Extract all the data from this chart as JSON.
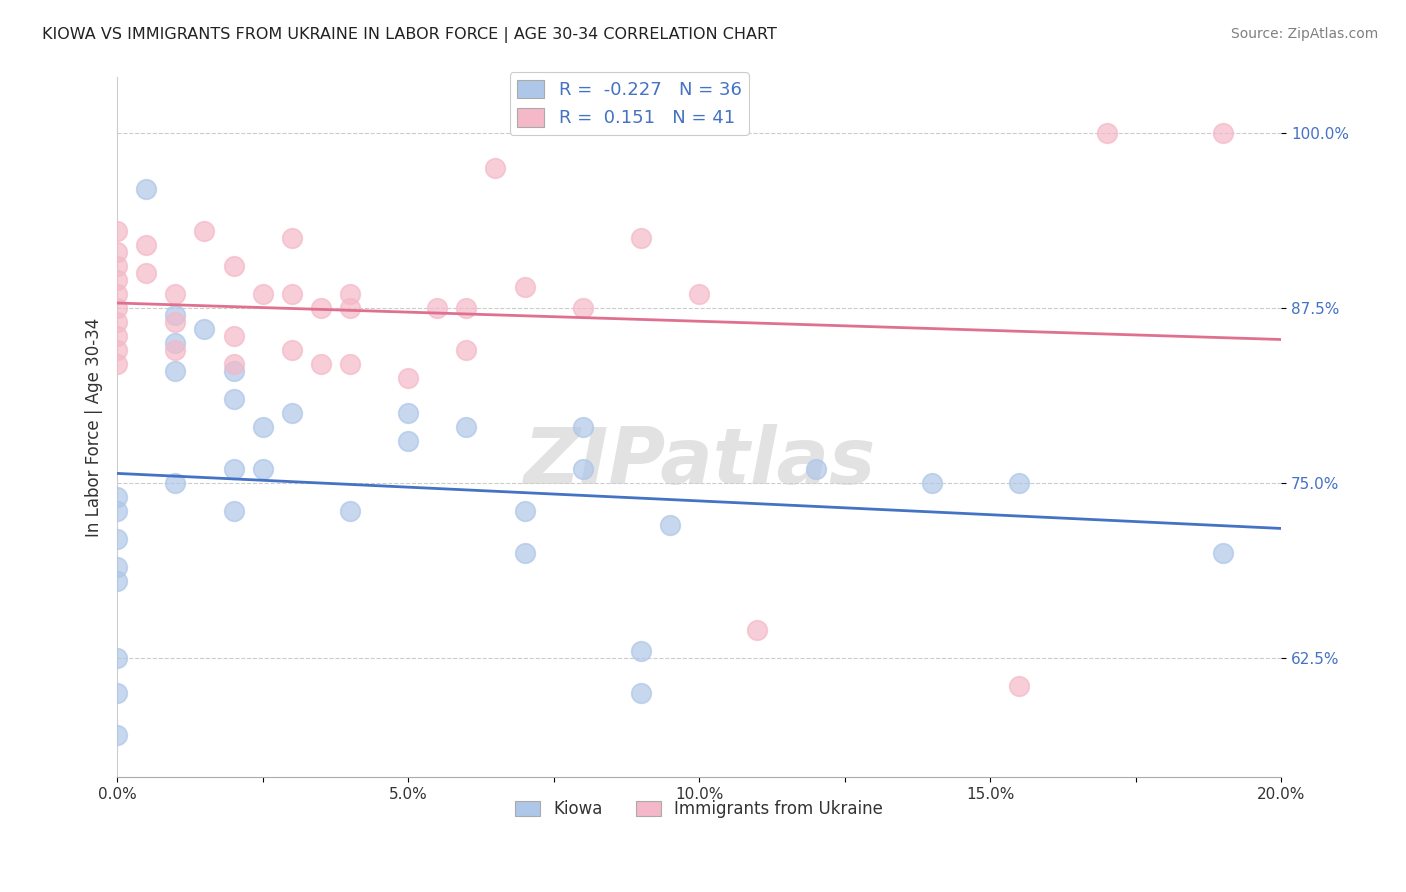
{
  "title": "KIOWA VS IMMIGRANTS FROM UKRAINE IN LABOR FORCE | AGE 30-34 CORRELATION CHART",
  "source": "Source: ZipAtlas.com",
  "ylabel": "In Labor Force | Age 30-34",
  "xlim": [
    0.0,
    0.2
  ],
  "ylim": [
    0.54,
    1.04
  ],
  "yticks": [
    0.625,
    0.75,
    0.875,
    1.0
  ],
  "ytick_labels": [
    "62.5%",
    "75.0%",
    "87.5%",
    "100.0%"
  ],
  "xticks": [
    0.0,
    0.025,
    0.05,
    0.075,
    0.1,
    0.125,
    0.15,
    0.175,
    0.2
  ],
  "xtick_labels": [
    "0.0%",
    "",
    "5.0%",
    "",
    "10.0%",
    "",
    "15.0%",
    "",
    "20.0%"
  ],
  "kiowa_R": -0.227,
  "kiowa_N": 36,
  "ukraine_R": 0.151,
  "ukraine_N": 41,
  "kiowa_color": "#aec6e8",
  "ukraine_color": "#f4b8c8",
  "kiowa_line_color": "#4472c4",
  "ukraine_line_color": "#e07090",
  "watermark": "ZIPatlas",
  "kiowa_x": [
    0.005,
    0.0,
    0.0,
    0.0,
    0.0,
    0.0,
    0.0,
    0.0,
    0.0,
    0.01,
    0.01,
    0.01,
    0.01,
    0.015,
    0.02,
    0.02,
    0.02,
    0.02,
    0.025,
    0.025,
    0.03,
    0.04,
    0.05,
    0.05,
    0.06,
    0.07,
    0.07,
    0.08,
    0.08,
    0.09,
    0.09,
    0.095,
    0.12,
    0.14,
    0.155,
    0.19
  ],
  "kiowa_y": [
    0.96,
    0.74,
    0.73,
    0.71,
    0.69,
    0.68,
    0.625,
    0.6,
    0.57,
    0.87,
    0.85,
    0.83,
    0.75,
    0.86,
    0.83,
    0.81,
    0.76,
    0.73,
    0.79,
    0.76,
    0.8,
    0.73,
    0.8,
    0.78,
    0.79,
    0.73,
    0.7,
    0.79,
    0.76,
    0.63,
    0.6,
    0.72,
    0.76,
    0.75,
    0.75,
    0.7
  ],
  "ukraine_x": [
    0.0,
    0.0,
    0.0,
    0.0,
    0.0,
    0.0,
    0.0,
    0.0,
    0.0,
    0.0,
    0.005,
    0.005,
    0.01,
    0.01,
    0.01,
    0.015,
    0.02,
    0.02,
    0.02,
    0.025,
    0.03,
    0.03,
    0.03,
    0.035,
    0.035,
    0.04,
    0.04,
    0.04,
    0.05,
    0.055,
    0.06,
    0.06,
    0.065,
    0.07,
    0.08,
    0.09,
    0.1,
    0.11,
    0.155,
    0.17,
    0.19
  ],
  "ukraine_y": [
    0.93,
    0.915,
    0.905,
    0.895,
    0.885,
    0.875,
    0.865,
    0.855,
    0.845,
    0.835,
    0.92,
    0.9,
    0.885,
    0.865,
    0.845,
    0.93,
    0.905,
    0.855,
    0.835,
    0.885,
    0.925,
    0.885,
    0.845,
    0.875,
    0.835,
    0.885,
    0.875,
    0.835,
    0.825,
    0.875,
    0.875,
    0.845,
    0.975,
    0.89,
    0.875,
    0.925,
    0.885,
    0.645,
    0.605,
    1.0,
    1.0
  ]
}
